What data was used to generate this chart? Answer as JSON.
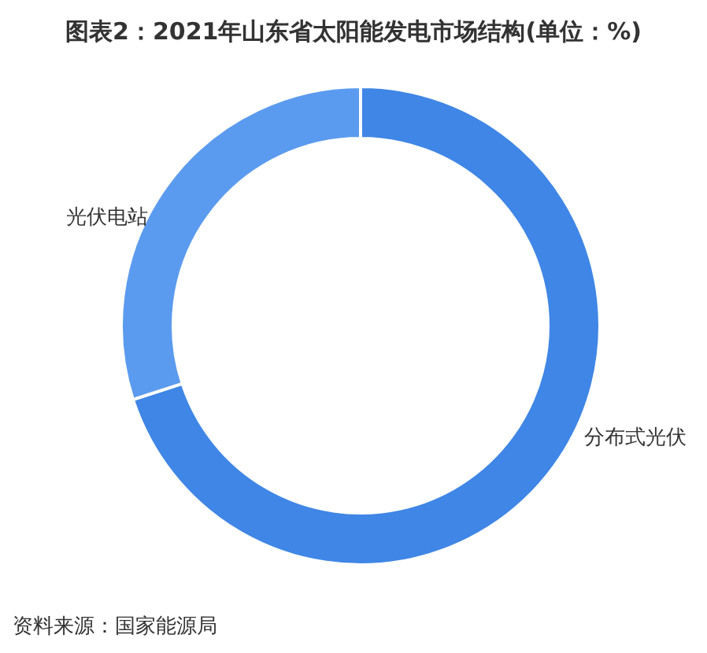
{
  "chart_data": {
    "type": "donut",
    "title": "图表2：2021年山东省太阳能发电市场结构(单位：%)",
    "categories": [
      "分布式光伏",
      "光伏电站"
    ],
    "values": [
      70,
      30
    ],
    "colors": [
      "#3f86e6",
      "#5b9bef"
    ],
    "annotations": [
      "资料来源：国家能源局"
    ]
  }
}
